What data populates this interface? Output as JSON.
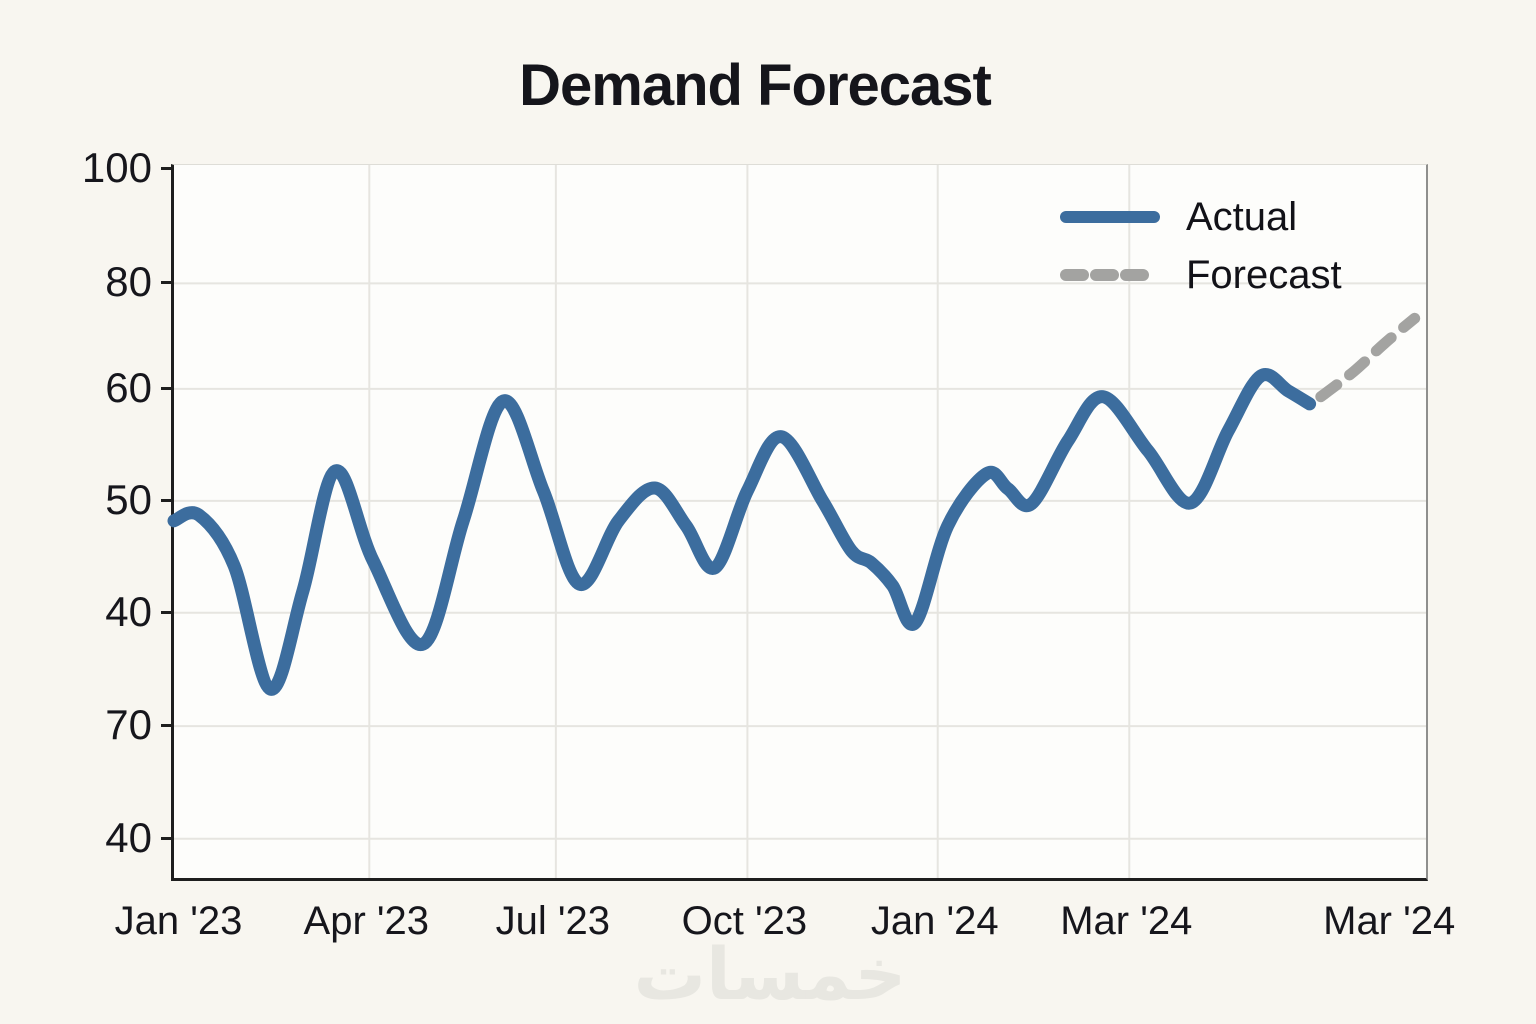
{
  "watermark_text": "خمسات",
  "colors": {
    "background": "#f8f6f0",
    "plot_background": "#fdfdfb",
    "gridline": "#e6e5e0",
    "axis_spine": "#1e1e1e",
    "right_spine": "#8f8f8d",
    "actual_line": "#3c6d9e",
    "forecast_line": "#a3a3a1",
    "text": "#16161c"
  },
  "chart_data": {
    "type": "line",
    "title": "Demand Forecast",
    "xlabel": "",
    "ylabel": "",
    "grid": true,
    "legend_position": "top-right",
    "legend": {
      "entries": [
        {
          "label": "Actual",
          "style": "solid",
          "color": "#3c6d9e"
        },
        {
          "label": "Forecast",
          "style": "dashed",
          "color": "#a3a3a1"
        }
      ]
    },
    "y_ticks": [
      {
        "label": "100",
        "pos_pct": 0.6
      },
      {
        "label": "80",
        "pos_pct": 16.6
      },
      {
        "label": "60",
        "pos_pct": 31.4
      },
      {
        "label": "50",
        "pos_pct": 47.1
      },
      {
        "label": "40",
        "pos_pct": 62.8
      },
      {
        "label": "70",
        "pos_pct": 78.7
      },
      {
        "label": "40",
        "pos_pct": 94.5
      }
    ],
    "y_axis_note": "y tick labels as rendered are non-monotonic: 100, 80, 60, 50, 40, 70, 40",
    "x_ticks": [
      {
        "label": "Jan '23",
        "pos_pct": 0.6
      },
      {
        "label": "Apr '23",
        "pos_pct": 15.6
      },
      {
        "label": "Jul '23",
        "pos_pct": 30.5
      },
      {
        "label": "Oct '23",
        "pos_pct": 45.8
      },
      {
        "label": "Jan '24",
        "pos_pct": 61.0
      },
      {
        "label": "Mar '24",
        "pos_pct": 76.3
      },
      {
        "label": "Mar '24",
        "pos_pct": 97.3
      }
    ],
    "y_gridline_tick_indices": [
      1,
      2,
      3,
      4,
      5,
      6
    ],
    "x_gridline_tick_indices": [
      1,
      2,
      3,
      4,
      5
    ],
    "series": [
      {
        "name": "Actual",
        "color": "#3c6d9e",
        "line_style": "solid",
        "line_width": 13,
        "points_pct": [
          [
            0.0,
            49.9
          ],
          [
            2.0,
            49.1
          ],
          [
            4.8,
            56.2
          ],
          [
            7.7,
            73.5
          ],
          [
            10.3,
            59.7
          ],
          [
            12.9,
            42.9
          ],
          [
            15.9,
            55.5
          ],
          [
            19.9,
            67.2
          ],
          [
            23.1,
            49.9
          ],
          [
            26.3,
            33.1
          ],
          [
            29.5,
            45.7
          ],
          [
            32.4,
            58.8
          ],
          [
            35.5,
            49.9
          ],
          [
            38.4,
            45.3
          ],
          [
            40.9,
            50.6
          ],
          [
            43.2,
            56.5
          ],
          [
            45.8,
            45.7
          ],
          [
            48.5,
            38.1
          ],
          [
            51.8,
            47.1
          ],
          [
            54.1,
            54.1
          ],
          [
            55.7,
            55.8
          ],
          [
            57.4,
            59.0
          ],
          [
            59.2,
            64.2
          ],
          [
            61.8,
            50.6
          ],
          [
            64.9,
            43.3
          ],
          [
            66.6,
            45.4
          ],
          [
            68.5,
            47.5
          ],
          [
            71.4,
            38.7
          ],
          [
            74.2,
            32.5
          ],
          [
            77.8,
            40.1
          ],
          [
            81.2,
            47.4
          ],
          [
            84.2,
            37.3
          ],
          [
            86.8,
            29.6
          ],
          [
            89.0,
            31.7
          ],
          [
            90.7,
            33.5
          ]
        ],
        "values_approx_at_extrema": [
          48,
          33,
          53,
          37,
          58.5,
          42.5,
          51,
          44,
          56,
          45.5,
          39,
          52.5,
          50,
          58.5,
          50,
          61.5,
          58.5
        ]
      },
      {
        "name": "Forecast",
        "color": "#a3a3a1",
        "line_style": "dashed",
        "line_width": 11,
        "dash_pattern": "20 16",
        "points_pct": [
          [
            91.6,
            32.5
          ],
          [
            94.2,
            29.0
          ],
          [
            96.7,
            25.0
          ],
          [
            99.1,
            21.5
          ]
        ],
        "values_approx": [
          58.5,
          72
        ]
      }
    ]
  }
}
